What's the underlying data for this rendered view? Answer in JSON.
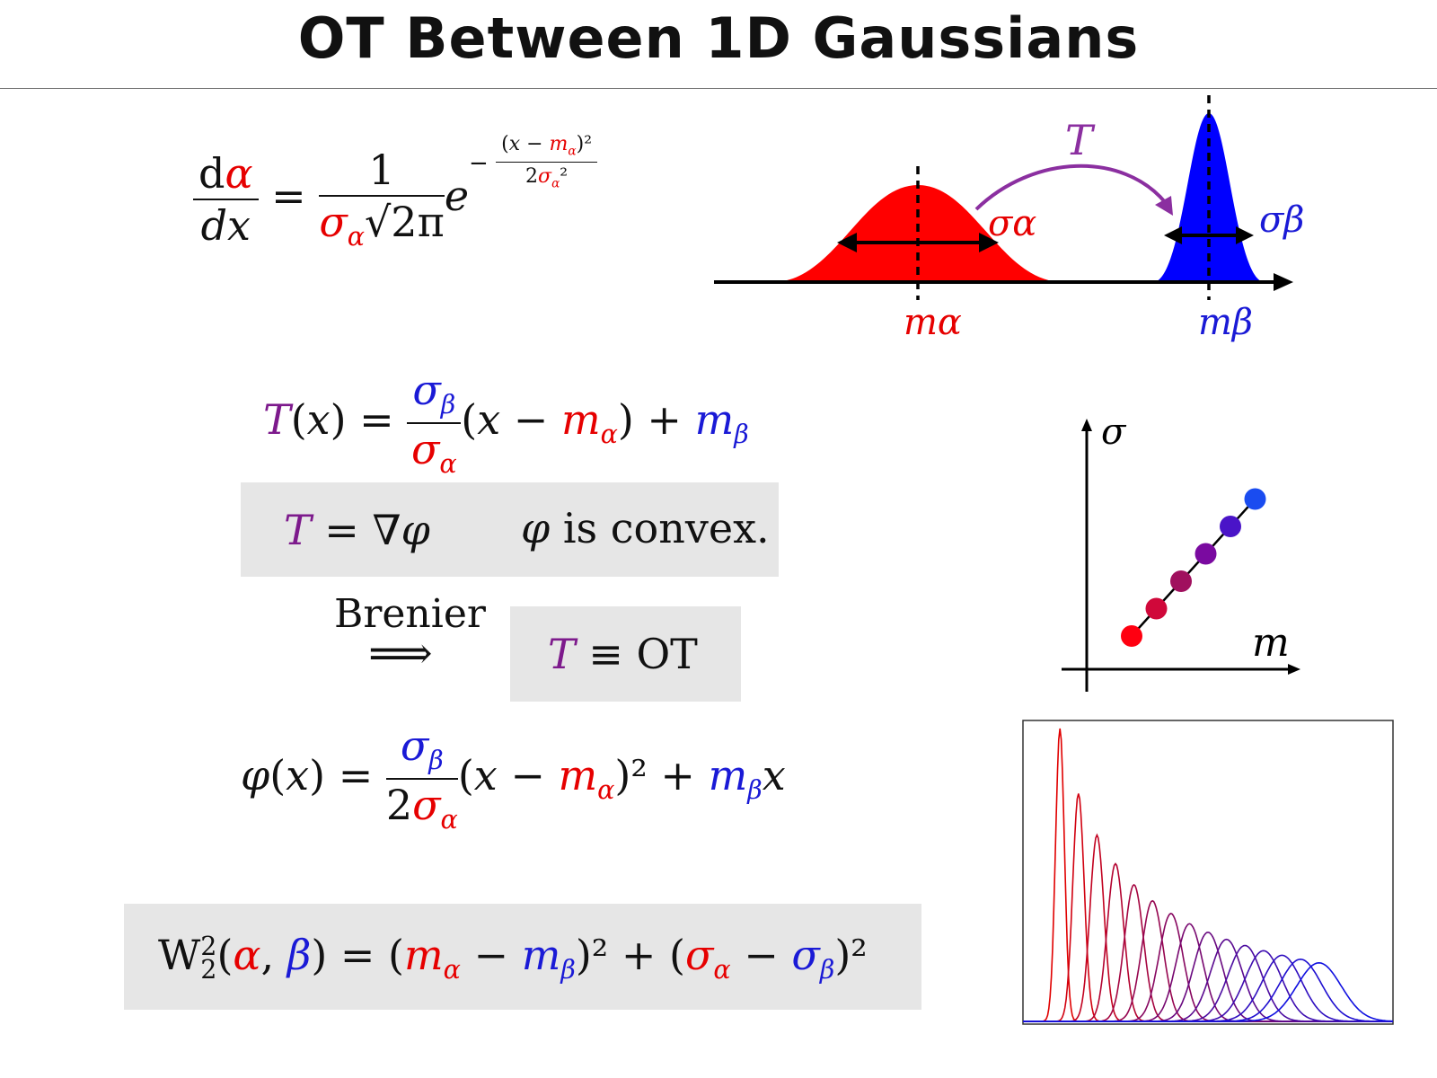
{
  "title": "OT Between 1D Gaussians",
  "eq_density": {
    "lhs_num": "dα",
    "lhs_den": "dx",
    "eq": "=",
    "rhs_num": "1",
    "rhs_den": "σα√2π",
    "exp": "e",
    "exp_num": "(x − mα)²",
    "exp_den": "2σα²",
    "neg": "−"
  },
  "diagram_top": {
    "map_label": "T",
    "sigma_a": "σα",
    "sigma_b": "σβ",
    "m_a": "mα",
    "m_b": "mβ",
    "colors": {
      "alpha": "#ff0000",
      "beta": "#0000ff",
      "map": "#8b2fa0"
    }
  },
  "eq_map": {
    "lhs": "T(x) =",
    "num": "σβ",
    "den": "σα",
    "rest_a": "(x − ",
    "ma": "mα",
    "rest_b": ") + ",
    "mb": "mβ"
  },
  "brenier_box": {
    "left": "T = ∇φ",
    "right": "φ is convex."
  },
  "brenier": {
    "label": "Brenier",
    "arrow": "⟹"
  },
  "ot_box": {
    "text": "T ≡ OT"
  },
  "eq_potential": {
    "lhs": "φ(x) =",
    "num": "σβ",
    "den": "2σα",
    "rest_a": "(x − ",
    "ma": "mα",
    "rest_b": ")² + ",
    "mb": "mβ",
    "x": "x"
  },
  "w2_box": {
    "text": "W₂²(α, β) = (mα − mβ)² + (σα − σβ)²"
  },
  "param_plot": {
    "y_label": "σ",
    "x_label": "m",
    "points": [
      {
        "m": 1,
        "s": 1,
        "color": "#ff0010"
      },
      {
        "m": 2,
        "s": 2,
        "color": "#d0083a"
      },
      {
        "m": 3,
        "s": 3,
        "color": "#a0105e"
      },
      {
        "m": 4,
        "s": 4,
        "color": "#7a0aa0"
      },
      {
        "m": 5,
        "s": 5,
        "color": "#4a14c8"
      },
      {
        "m": 6,
        "s": 6,
        "color": "#1a4cf0"
      }
    ]
  },
  "interp_plot": {
    "curves": 15,
    "start_color": "#e00000",
    "end_color": "#1010e0",
    "m_start": 0.1,
    "m_end": 0.8,
    "sigma_start": 0.012,
    "sigma_end": 0.06
  }
}
